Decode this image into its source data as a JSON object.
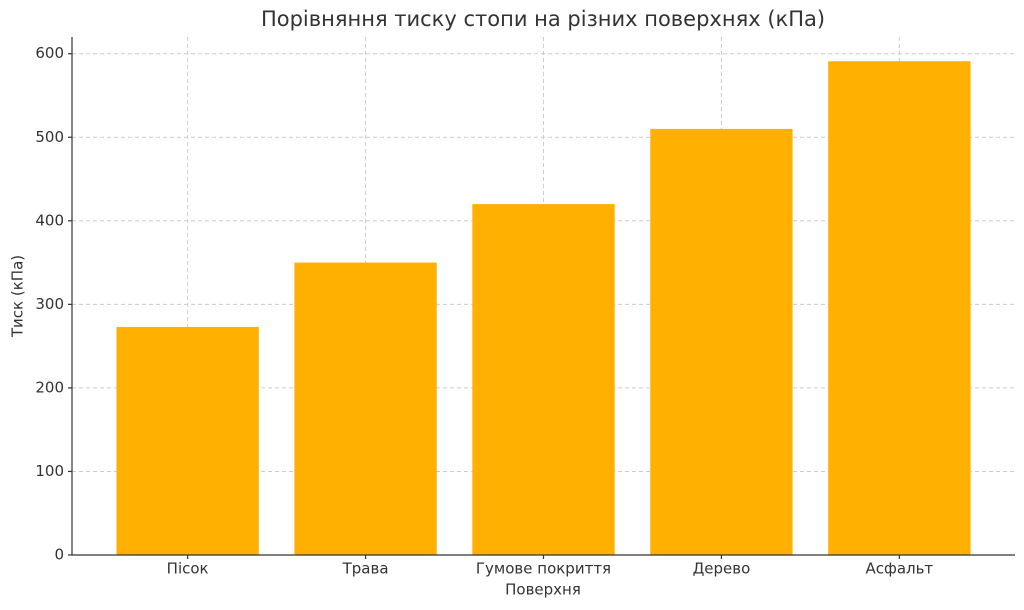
{
  "chart_data": {
    "type": "bar",
    "title": "Порівняння тиску стопи на різних поверхнях (кПа)",
    "x_label": "Поверхня",
    "y_label": "Тиск (кПа)",
    "categories": [
      "Пісок",
      "Трава",
      "Гумове покриття",
      "Дерево",
      "Асфальт"
    ],
    "values": [
      273,
      350,
      420,
      510,
      591
    ],
    "color": "#ffb000",
    "ylim": [
      0,
      620
    ],
    "yticks": [
      0,
      100,
      200,
      300,
      400,
      500,
      600
    ],
    "grid": true
  }
}
